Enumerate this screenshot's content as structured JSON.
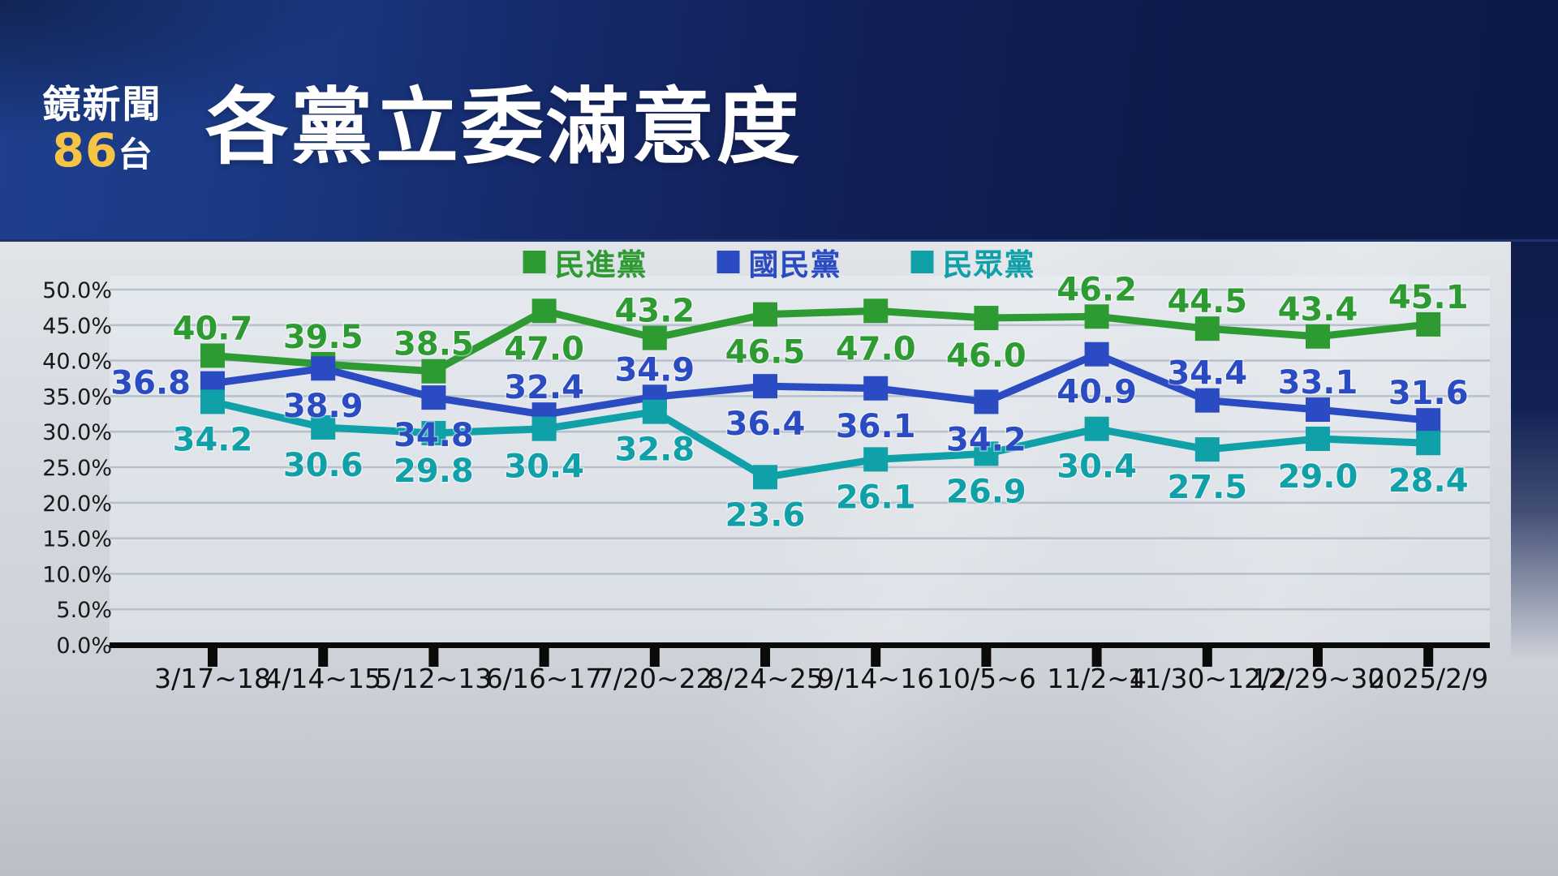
{
  "header": {
    "logo_line1": "鏡新聞",
    "logo_channel_number": "86",
    "logo_channel_suffix": "台",
    "title": "各黨立委滿意度"
  },
  "colors": {
    "banner_navy": "#101f55",
    "channel_number_yellow": "#f5c445",
    "dpp_green": "#2e9b32",
    "kmt_blue": "#2b4bc2",
    "tpp_teal": "#0fa0a8",
    "gridline_gray": "#b4bdca",
    "axis_black": "#0a0a0a"
  },
  "chart_data": {
    "type": "line",
    "title": "各黨立委滿意度",
    "categories": [
      "3/17~18",
      "4/14~15",
      "5/12~13",
      "6/16~17",
      "7/20~22",
      "8/24~25",
      "9/14~16",
      "10/5~6",
      "11/2~4",
      "11/30~12/2",
      "12/29~30",
      "2025/2/9"
    ],
    "series": [
      {
        "name": "民進黨",
        "color": "#2e9b32",
        "values": [
          40.7,
          39.5,
          38.5,
          47.0,
          43.2,
          46.5,
          47.0,
          46.0,
          46.2,
          44.5,
          43.4,
          45.1
        ],
        "label_positions": [
          "above",
          "above",
          "above",
          "below",
          "above",
          "below",
          "below",
          "below",
          "above",
          "above",
          "above",
          "above"
        ]
      },
      {
        "name": "國民黨",
        "color": "#2b4bc2",
        "values": [
          36.8,
          38.9,
          34.8,
          32.4,
          34.9,
          36.4,
          36.1,
          34.2,
          40.9,
          34.4,
          33.1,
          31.6
        ],
        "label_positions": [
          "left",
          "below",
          "below",
          "above",
          "above",
          "below",
          "below",
          "below",
          "below",
          "above",
          "above",
          "above"
        ]
      },
      {
        "name": "民眾黨",
        "color": "#0fa0a8",
        "values": [
          34.2,
          30.6,
          29.8,
          30.4,
          32.8,
          23.6,
          26.1,
          26.9,
          30.4,
          27.5,
          29.0,
          28.4
        ],
        "label_positions": [
          "below",
          "below",
          "below",
          "below",
          "below",
          "below",
          "below",
          "below",
          "below",
          "below",
          "below",
          "below"
        ]
      }
    ],
    "y_axis": {
      "min": 0,
      "max": 50,
      "step": 5,
      "tick_format": "one_decimal_percent"
    },
    "grid": true,
    "legend_position": "top-center"
  }
}
